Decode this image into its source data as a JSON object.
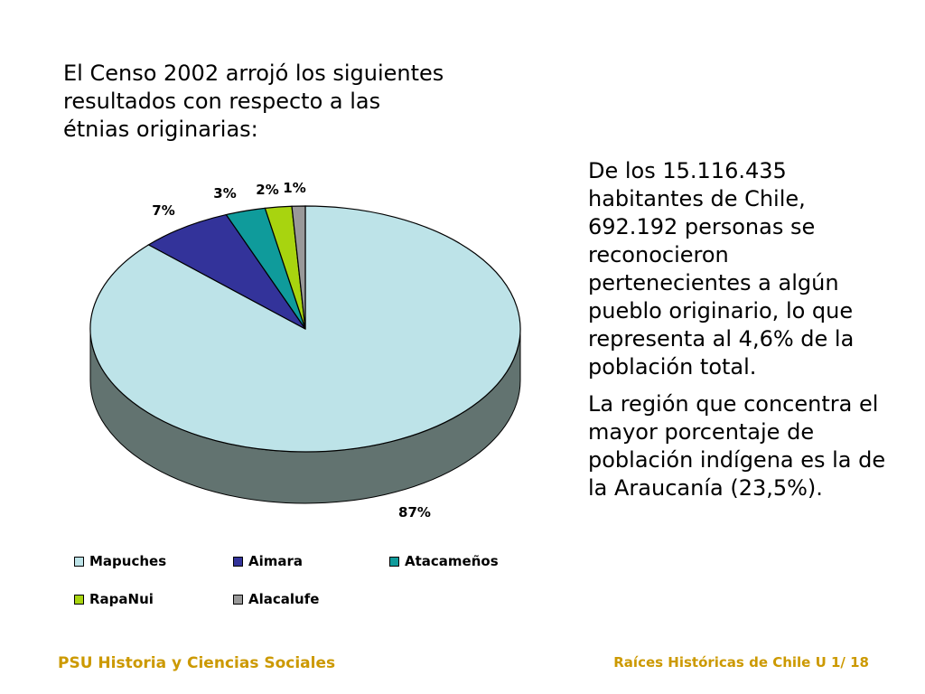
{
  "slide": {
    "intro": "El Censo 2002 arrojó los siguientes resultados con respecto a las étnias originarias:",
    "paragraph1": "De los 15.116.435 habitantes de Chile, 692.192 personas se reconocieron pertenecientes a algún pueblo originario, lo que representa al 4,6% de la población total.",
    "paragraph2": "La región que concentra el mayor porcentaje de población indígena es la de la Araucanía (23,5%).",
    "footer_left": "PSU Historia y Ciencias Sociales",
    "footer_right": "Raíces Históricas de Chile   U 1/ 18"
  },
  "chart_data": {
    "type": "pie",
    "three_d": true,
    "categories": [
      "Mapuches",
      "Aimara",
      "Atacameños",
      "RapaNui",
      "Alacalufe"
    ],
    "values": [
      87,
      7,
      3,
      2,
      1
    ],
    "labels": [
      "87%",
      "7%",
      "3%",
      "2%",
      "1%"
    ],
    "colors": [
      "#bde3e8",
      "#33339a",
      "#0f9b9b",
      "#a8d40f",
      "#999999"
    ],
    "legend_position": "bottom"
  }
}
